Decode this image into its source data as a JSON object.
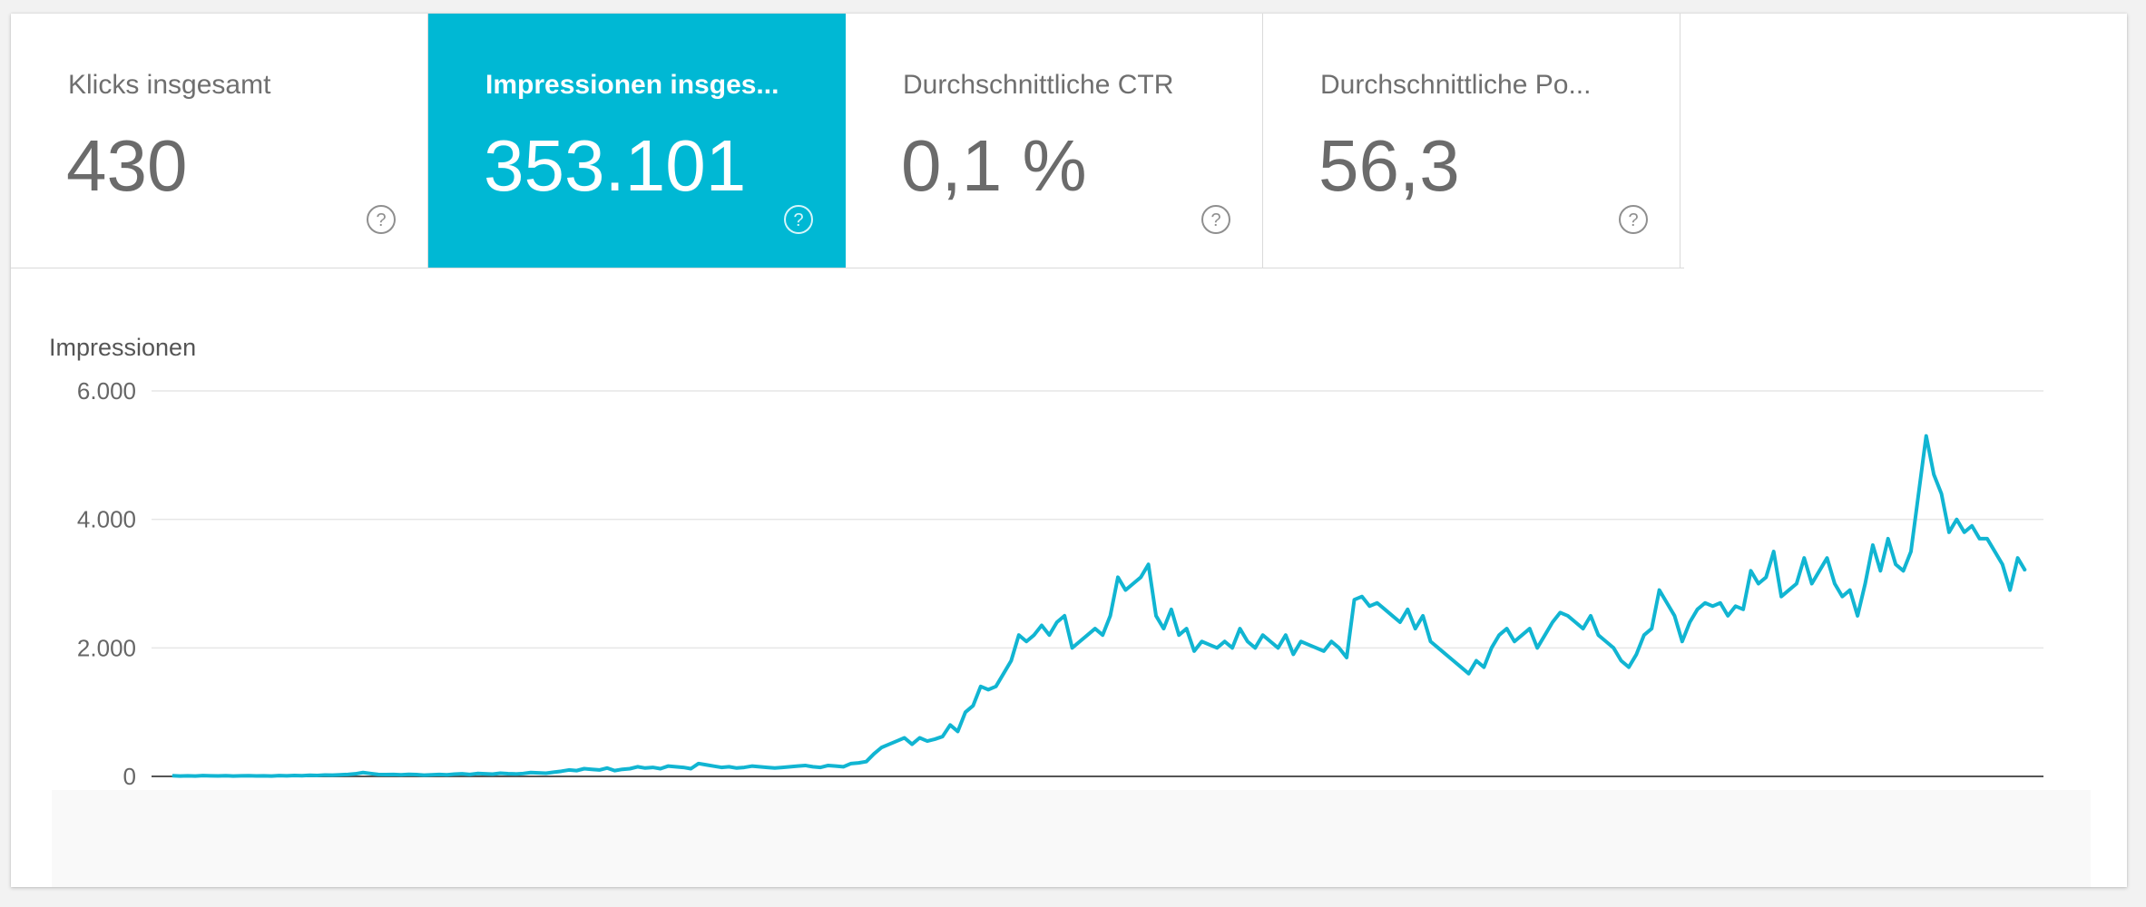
{
  "metrics": [
    {
      "label": "Klicks insgesamt",
      "value": "430",
      "selected": false
    },
    {
      "label": "Impressionen insges...",
      "value": "353.101",
      "selected": true
    },
    {
      "label": "Durchschnittliche CTR",
      "value": "0,1 %",
      "selected": false
    },
    {
      "label": "Durchschnittliche Po...",
      "value": "56,3",
      "selected": false
    }
  ],
  "icons": {
    "help": "help-circle-icon"
  },
  "colors": {
    "accent": "#00b8d4",
    "line": "#11b5d2"
  },
  "chart_data": {
    "type": "line",
    "ylabel": "Impressionen",
    "ylim": [
      0,
      6000
    ],
    "yticks": [
      0,
      2000,
      4000,
      6000
    ],
    "ytick_labels": [
      "0",
      "2.000",
      "4.000",
      "6.000"
    ],
    "grid": true,
    "series": [
      {
        "values": [
          10,
          5,
          8,
          6,
          12,
          9,
          7,
          11,
          6,
          8,
          10,
          7,
          9,
          5,
          12,
          8,
          14,
          10,
          18,
          15,
          22,
          20,
          25,
          30,
          40,
          60,
          45,
          30,
          28,
          30,
          25,
          32,
          28,
          20,
          25,
          30,
          25,
          35,
          40,
          30,
          45,
          40,
          35,
          50,
          42,
          38,
          45,
          60,
          55,
          50,
          65,
          80,
          100,
          90,
          120,
          110,
          100,
          130,
          90,
          110,
          120,
          150,
          130,
          140,
          120,
          160,
          150,
          140,
          120,
          200,
          180,
          160,
          140,
          150,
          130,
          140,
          160,
          150,
          140,
          130,
          140,
          150,
          160,
          170,
          150,
          140,
          170,
          160,
          150,
          200,
          210,
          230,
          350,
          450,
          500,
          550,
          600,
          500,
          600,
          550,
          580,
          620,
          800,
          700,
          1000,
          1100,
          1400,
          1350,
          1400,
          1600,
          1800,
          2200,
          2100,
          2200,
          2350,
          2200,
          2400,
          2500,
          2000,
          2100,
          2200,
          2300,
          2200,
          2500,
          3100,
          2900,
          3000,
          3100,
          3300,
          2500,
          2300,
          2600,
          2200,
          2300,
          1950,
          2100,
          2050,
          2000,
          2100,
          2000,
          2300,
          2100,
          2000,
          2200,
          2100,
          2000,
          2200,
          1900,
          2100,
          2050,
          2000,
          1950,
          2100,
          2000,
          1850,
          2750,
          2800,
          2650,
          2700,
          2600,
          2500,
          2400,
          2600,
          2300,
          2500,
          2100,
          2000,
          1900,
          1800,
          1700,
          1600,
          1800,
          1700,
          2000,
          2200,
          2300,
          2100,
          2200,
          2300,
          2000,
          2200,
          2400,
          2550,
          2500,
          2400,
          2300,
          2500,
          2200,
          2100,
          2000,
          1800,
          1700,
          1900,
          2200,
          2300,
          2900,
          2700,
          2500,
          2100,
          2400,
          2600,
          2700,
          2650,
          2700,
          2500,
          2650,
          2600,
          3200,
          3000,
          3100,
          3500,
          2800,
          2900,
          3000,
          3400,
          3000,
          3200,
          3400,
          3000,
          2800,
          2900,
          2500,
          3000,
          3600,
          3200,
          3700,
          3300,
          3200,
          3500,
          4400,
          5300,
          4700,
          4400,
          3800,
          4000,
          3800,
          3900,
          3700,
          3700,
          3500,
          3300,
          2900,
          3400,
          3200
        ]
      }
    ]
  }
}
